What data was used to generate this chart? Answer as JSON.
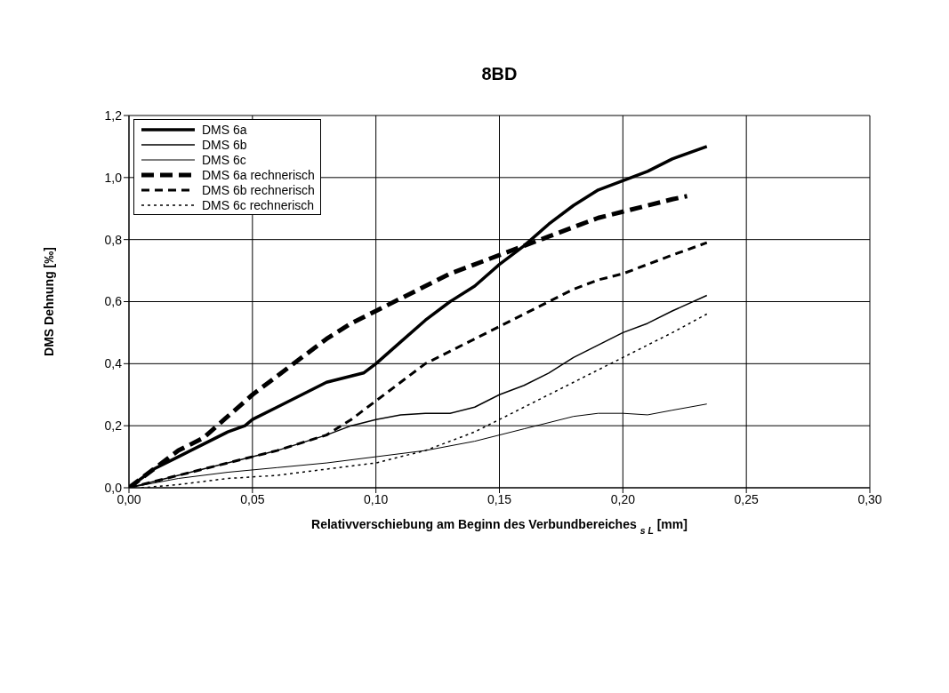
{
  "chart_data": {
    "type": "line",
    "title": "8BD",
    "xlabel": "Relativverschiebung am Beginn des Verbundbereiches $_{s L}$     [mm]",
    "ylabel": "DMS Dehnung     [‰]",
    "xlim": [
      0,
      0.3
    ],
    "xticks": [
      {
        "value": 0,
        "label": "0,00"
      },
      {
        "value": 0.05,
        "label": "0,05"
      },
      {
        "value": 0.1,
        "label": "0,10"
      },
      {
        "value": 0.15,
        "label": "0,15"
      },
      {
        "value": 0.2,
        "label": "0,20"
      },
      {
        "value": 0.25,
        "label": "0,25"
      },
      {
        "value": 0.3,
        "label": "0,30"
      }
    ],
    "ylim": [
      0,
      1.2
    ],
    "yticks": [
      {
        "value": 0,
        "label": "0,0"
      },
      {
        "value": 0.2,
        "label": "0,2"
      },
      {
        "value": 0.4,
        "label": "0,4"
      },
      {
        "value": 0.6,
        "label": "0,6"
      },
      {
        "value": 0.8,
        "label": "0,8"
      },
      {
        "value": 1.0,
        "label": "1,0"
      },
      {
        "value": 1.2,
        "label": "1,2"
      }
    ],
    "grid": true,
    "legend": "top left",
    "marker": "none",
    "series": [
      {
        "name": "DMS 6a",
        "color": "#000000",
        "line_style": "solid",
        "x": [
          0,
          0.01,
          0.02,
          0.03,
          0.04,
          0.047,
          0.05,
          0.06,
          0.07,
          0.08,
          0.09,
          0.095,
          0.1,
          0.11,
          0.12,
          0.13,
          0.14,
          0.15,
          0.16,
          0.17,
          0.18,
          0.19,
          0.2,
          0.21,
          0.22,
          0.234
        ],
        "values": [
          0,
          0.06,
          0.1,
          0.14,
          0.18,
          0.2,
          0.22,
          0.26,
          0.3,
          0.34,
          0.36,
          0.37,
          0.4,
          0.47,
          0.54,
          0.6,
          0.65,
          0.72,
          0.78,
          0.85,
          0.91,
          0.96,
          0.99,
          1.02,
          1.06,
          1.1
        ]
      },
      {
        "name": "DMS 6b",
        "color": "#000000",
        "line_style": "solid",
        "x": [
          0,
          0.02,
          0.04,
          0.06,
          0.08,
          0.09,
          0.1,
          0.11,
          0.12,
          0.13,
          0.14,
          0.15,
          0.16,
          0.17,
          0.18,
          0.19,
          0.2,
          0.21,
          0.22,
          0.234
        ],
        "values": [
          0,
          0.04,
          0.08,
          0.12,
          0.17,
          0.2,
          0.22,
          0.235,
          0.24,
          0.24,
          0.26,
          0.3,
          0.33,
          0.37,
          0.42,
          0.46,
          0.5,
          0.53,
          0.57,
          0.62
        ]
      },
      {
        "name": "DMS 6c",
        "color": "#000000",
        "line_style": "solid",
        "x": [
          0,
          0.02,
          0.04,
          0.06,
          0.08,
          0.1,
          0.12,
          0.14,
          0.16,
          0.17,
          0.18,
          0.19,
          0.2,
          0.21,
          0.22,
          0.234
        ],
        "values": [
          0,
          0.03,
          0.05,
          0.065,
          0.08,
          0.1,
          0.12,
          0.15,
          0.19,
          0.21,
          0.23,
          0.24,
          0.24,
          0.235,
          0.25,
          0.27
        ]
      },
      {
        "name": "DMS 6a rechnerisch",
        "color": "#000000",
        "line_style": "dashed",
        "x": [
          0,
          0.01,
          0.02,
          0.03,
          0.04,
          0.05,
          0.06,
          0.07,
          0.08,
          0.09,
          0.1,
          0.11,
          0.12,
          0.13,
          0.14,
          0.15,
          0.16,
          0.17,
          0.18,
          0.19,
          0.2,
          0.21,
          0.22,
          0.226
        ],
        "values": [
          0,
          0.06,
          0.12,
          0.16,
          0.23,
          0.3,
          0.36,
          0.42,
          0.48,
          0.53,
          0.57,
          0.61,
          0.65,
          0.69,
          0.72,
          0.75,
          0.78,
          0.81,
          0.84,
          0.87,
          0.89,
          0.91,
          0.93,
          0.94
        ]
      },
      {
        "name": "DMS 6b rechnerisch",
        "color": "#000000",
        "line_style": "dashed",
        "x": [
          0,
          0.02,
          0.04,
          0.06,
          0.08,
          0.09,
          0.1,
          0.11,
          0.12,
          0.13,
          0.14,
          0.15,
          0.16,
          0.17,
          0.18,
          0.19,
          0.2,
          0.21,
          0.22,
          0.234
        ],
        "values": [
          0,
          0.04,
          0.08,
          0.12,
          0.17,
          0.22,
          0.28,
          0.34,
          0.4,
          0.44,
          0.48,
          0.52,
          0.56,
          0.6,
          0.64,
          0.67,
          0.69,
          0.72,
          0.75,
          0.79
        ]
      },
      {
        "name": "DMS 6c rechnerisch",
        "color": "#000000",
        "line_style": "dotted",
        "x": [
          0.005,
          0.02,
          0.04,
          0.06,
          0.08,
          0.1,
          0.12,
          0.14,
          0.15,
          0.16,
          0.17,
          0.18,
          0.19,
          0.2,
          0.21,
          0.22,
          0.234
        ],
        "values": [
          0,
          0.01,
          0.03,
          0.04,
          0.06,
          0.08,
          0.12,
          0.18,
          0.22,
          0.26,
          0.3,
          0.34,
          0.38,
          0.42,
          0.46,
          0.5,
          0.56
        ]
      }
    ]
  }
}
